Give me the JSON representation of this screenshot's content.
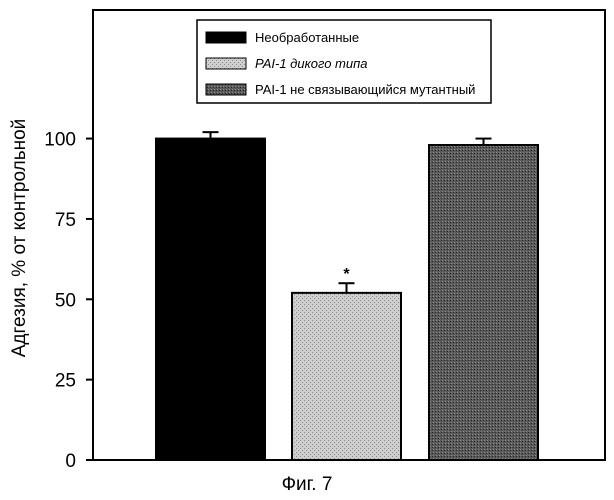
{
  "chart_data": {
    "type": "bar",
    "title": "",
    "xlabel": "",
    "ylabel": "Адгезия, % от контрольной",
    "ylim": [
      0,
      140
    ],
    "yticks": [
      0,
      25,
      50,
      75,
      100
    ],
    "grid": false,
    "legend_position": "top-center",
    "series": [
      {
        "name": "Необработанные",
        "value": 100,
        "error": 2,
        "annotation": "",
        "color": "#000000",
        "pattern": "solid",
        "italic": false
      },
      {
        "name": "PAI-1 дикого типа",
        "value": 52,
        "error": 3,
        "annotation": "*",
        "color": "#d0d0d0",
        "pattern": "light-stipple",
        "italic": true
      },
      {
        "name": "PAI-1 не связывающийся мутантный",
        "value": 98,
        "error": 2,
        "annotation": "",
        "color": "#555555",
        "pattern": "dark-stipple",
        "italic": false
      }
    ]
  },
  "caption": "Фиг. 7"
}
